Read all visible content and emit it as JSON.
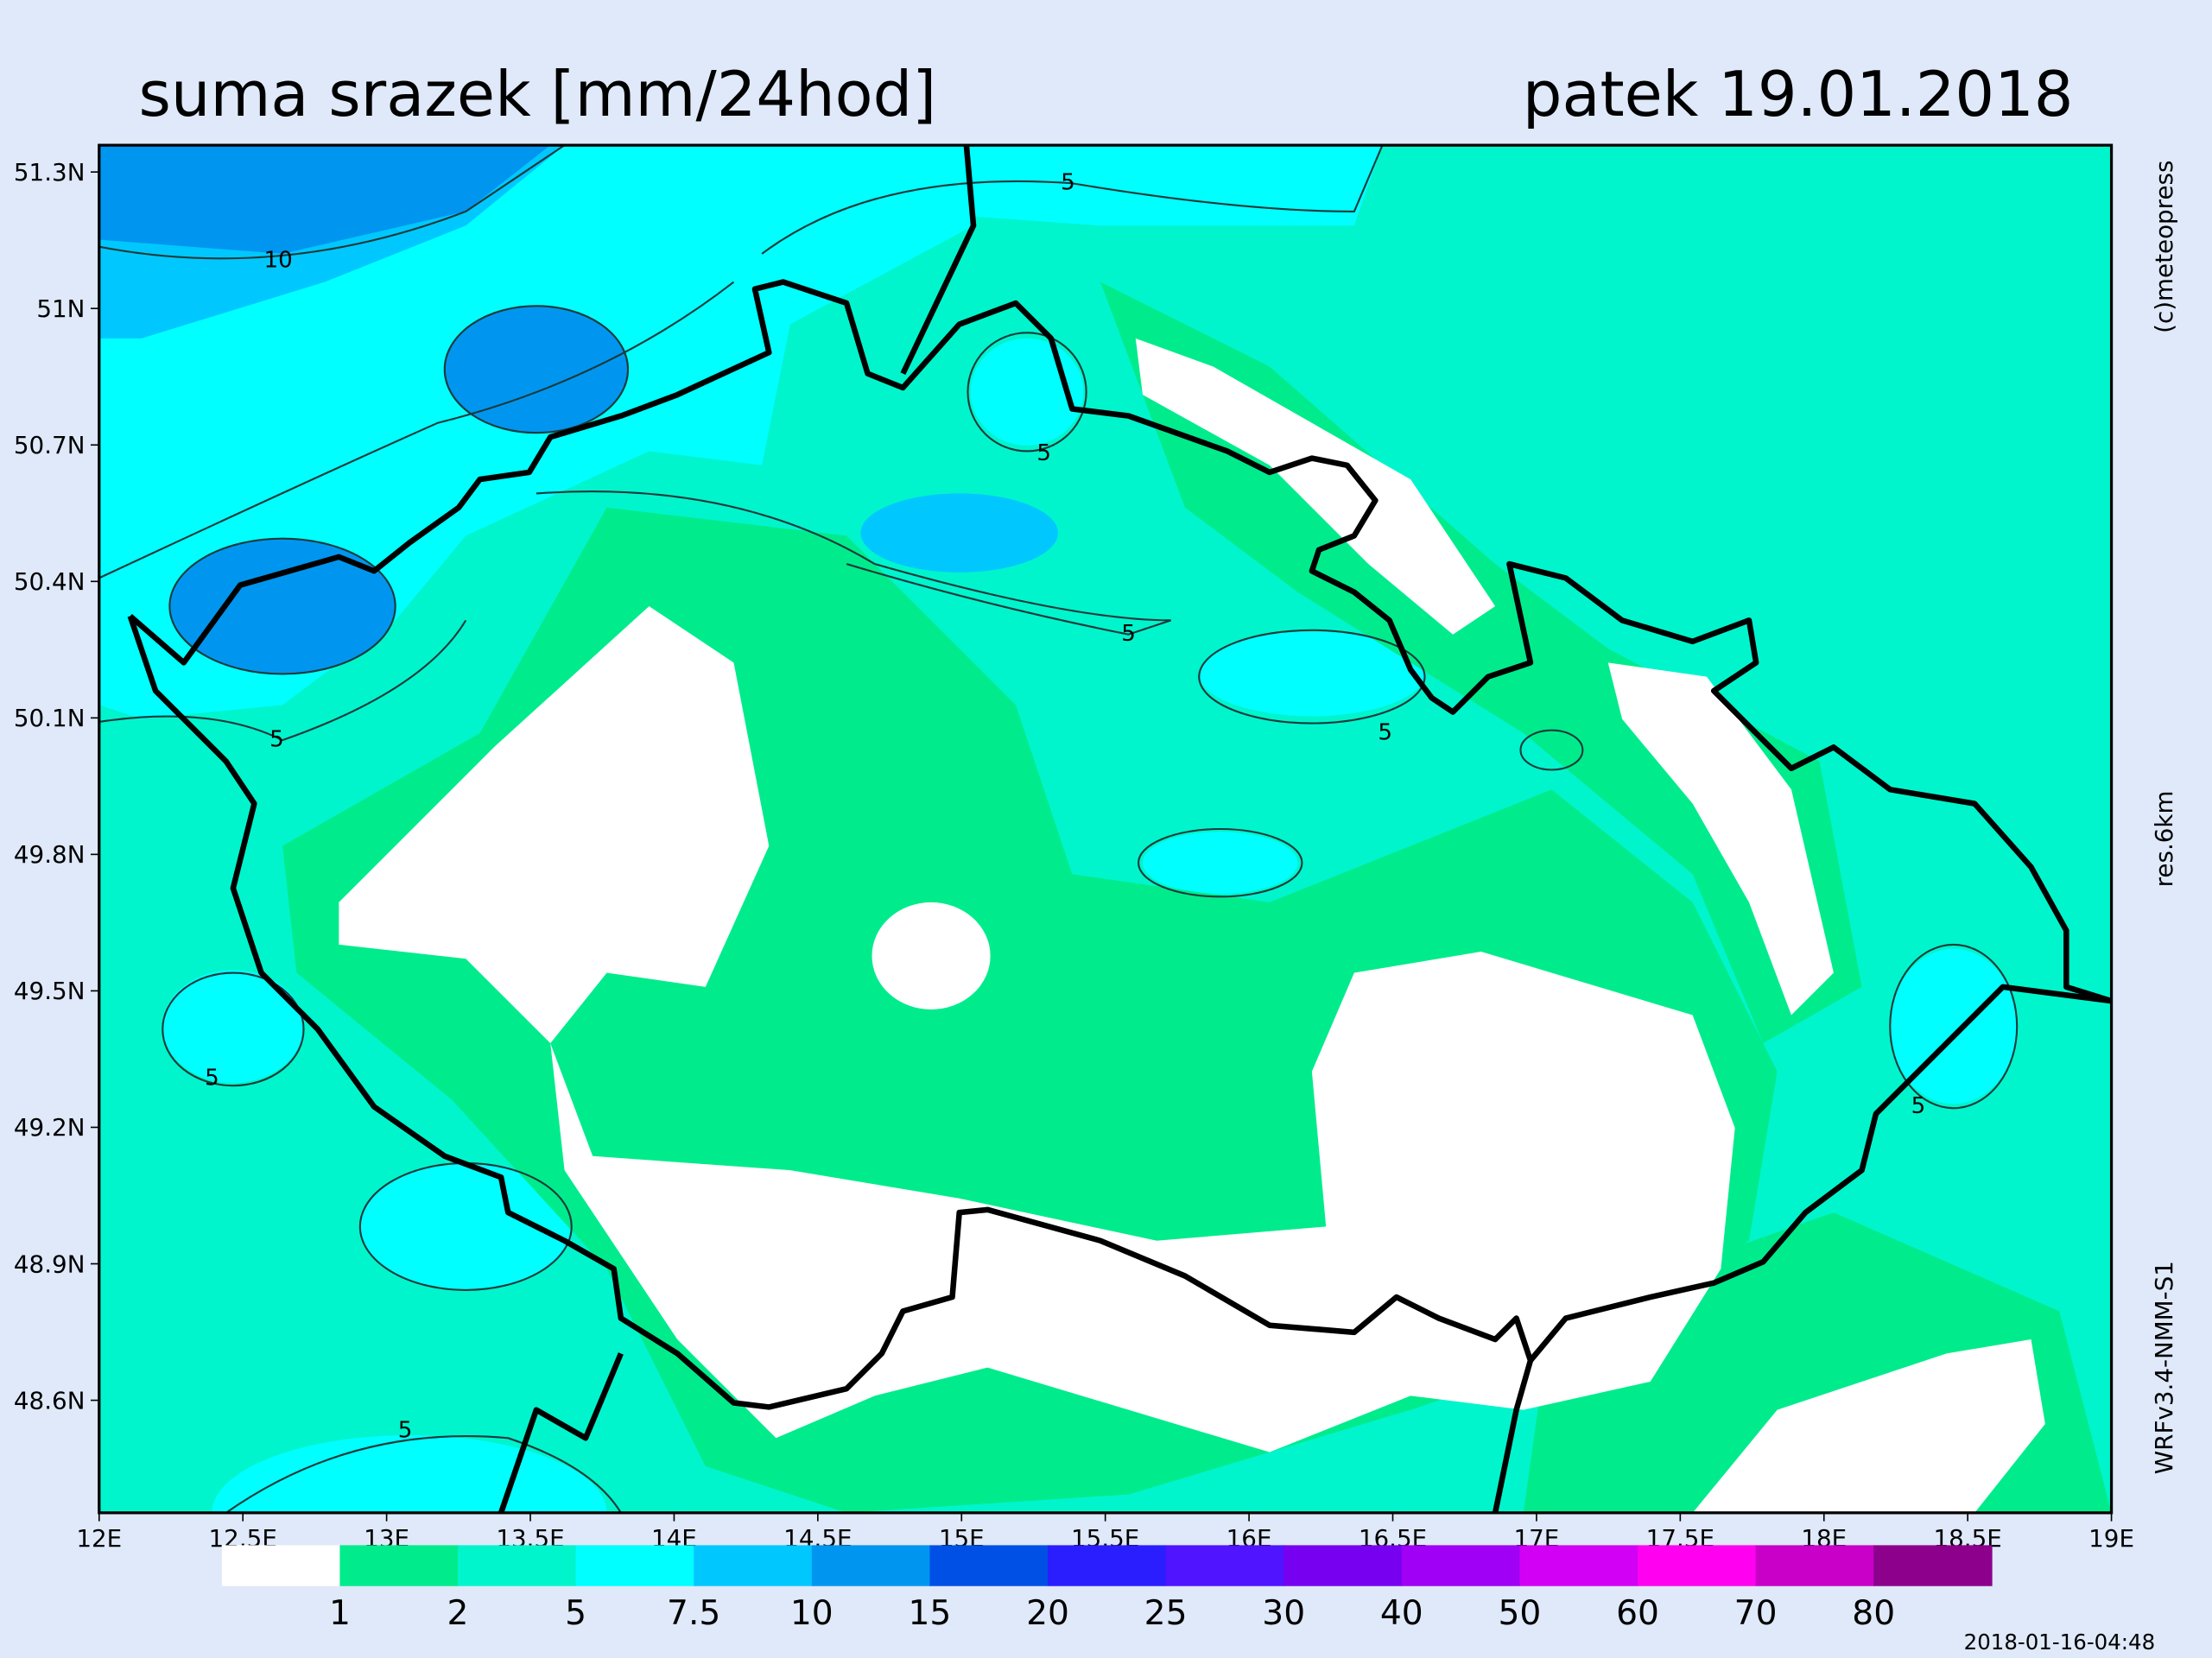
{
  "header": {
    "title": "suma srazek [mm/24hod]",
    "date": "patek 19.01.2018"
  },
  "axes": {
    "lat_labels": [
      "51.3N",
      "51N",
      "50.7N",
      "50.4N",
      "50.1N",
      "49.8N",
      "49.5N",
      "49.2N",
      "48.9N",
      "48.6N"
    ],
    "lon_labels": [
      "12E",
      "12.5E",
      "13E",
      "13.5E",
      "14E",
      "14.5E",
      "15E",
      "15.5E",
      "16E",
      "16.5E",
      "17E",
      "17.5E",
      "18E",
      "18.5E",
      "19E"
    ]
  },
  "contour_labels": [
    "10",
    "5",
    "5",
    "5",
    "5",
    "5",
    "5",
    "5",
    "5"
  ],
  "legend": {
    "levels": [
      1,
      2,
      5,
      7.5,
      10,
      15,
      20,
      25,
      30,
      40,
      50,
      60,
      70,
      80
    ],
    "colors": [
      "#ffffff",
      "#00ec8c",
      "#00f5cd",
      "#00ffff",
      "#00c8ff",
      "#0096f0",
      "#0050e6",
      "#2a1eff",
      "#5014ff",
      "#7800f0",
      "#a000f5",
      "#d200f5",
      "#ff00f0",
      "#c800c8",
      "#8c008c"
    ]
  },
  "side": {
    "copyright": "(c)meteopress",
    "resolution": "res.6km",
    "model": "WRFv3.4-NMM-S1",
    "timestamp": "2018-01-16-04:48"
  }
}
